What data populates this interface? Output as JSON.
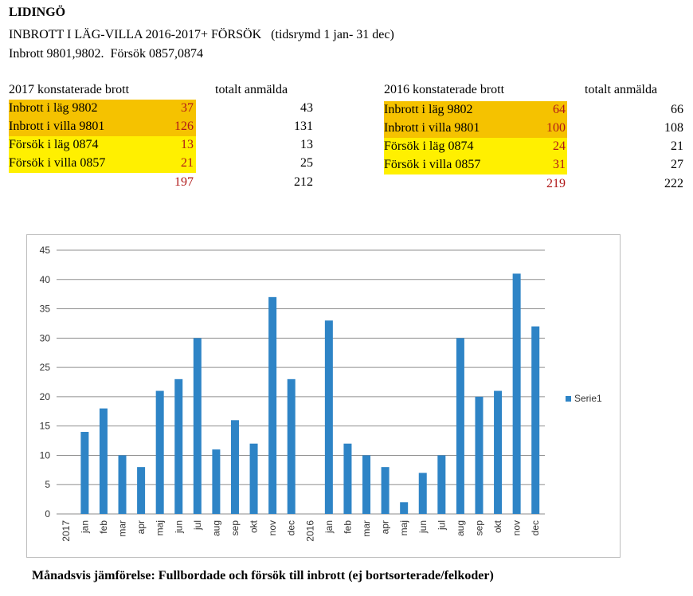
{
  "header": {
    "title": "LIDINGÖ",
    "subtitle": "INBROTT I LÄG-VILLA 2016-2017+ FÖRSÖK",
    "period": "(tidsrymd 1 jan- 31 dec)",
    "codes": "Inbrott 9801,9802.  Försök 0857,0874"
  },
  "table_2017": {
    "heading": "2017 konstaterade brott",
    "total_heading": "totalt anmälda",
    "rows": [
      {
        "label": "Inbrott i läg 9802",
        "value": "37",
        "total": "43"
      },
      {
        "label": "Inbrott i villa 9801",
        "value": "126",
        "total": "131"
      },
      {
        "label": "Försök i läg 0874",
        "value": "13",
        "total": "13"
      },
      {
        "label": "Försök i villa 0857",
        "value": "21",
        "total": "25"
      }
    ],
    "sum_value": "197",
    "sum_total": "212"
  },
  "table_2016": {
    "heading": "2016 konstaterade brott",
    "total_heading": "totalt anmälda",
    "rows": [
      {
        "label": "Inbrott i läg 9802",
        "value": "64",
        "total": "66"
      },
      {
        "label": "Inbrott i villa 9801",
        "value": "100",
        "total": "108"
      },
      {
        "label": "Försök i läg 0874",
        "value": "24",
        "total": "21"
      },
      {
        "label": "Försök i villa 0857",
        "value": "31",
        "total": "27"
      }
    ],
    "sum_value": "219",
    "sum_total": "222"
  },
  "colors": {
    "highlight_orange": "#f5c200",
    "highlight_yellow": "#fff000",
    "value_red": "#b01818",
    "bar": "#2e84c6"
  },
  "chart_data": {
    "type": "bar",
    "categories": [
      "2017",
      "jan",
      "feb",
      "mar",
      "apr",
      "maj",
      "jun",
      "jul",
      "aug",
      "sep",
      "okt",
      "nov",
      "dec",
      "2016",
      "jan",
      "feb",
      "mar",
      "apr",
      "maj",
      "jun",
      "jul",
      "aug",
      "sep",
      "okt",
      "nov",
      "dec"
    ],
    "series": [
      {
        "name": "Serie1",
        "values": [
          null,
          14,
          18,
          10,
          8,
          21,
          23,
          30,
          11,
          16,
          12,
          37,
          23,
          null,
          33,
          12,
          10,
          8,
          2,
          7,
          10,
          30,
          20,
          21,
          41,
          32
        ]
      }
    ],
    "ylim": [
      0,
      45
    ],
    "yticks": [
      0,
      5,
      10,
      15,
      20,
      25,
      30,
      35,
      40,
      45
    ],
    "grid": true,
    "legend": "right",
    "xlabel": "",
    "ylabel": ""
  },
  "caption": "Månadsvis jämförelse: Fullbordade och försök till inbrott (ej bortsorterade/felkoder)"
}
